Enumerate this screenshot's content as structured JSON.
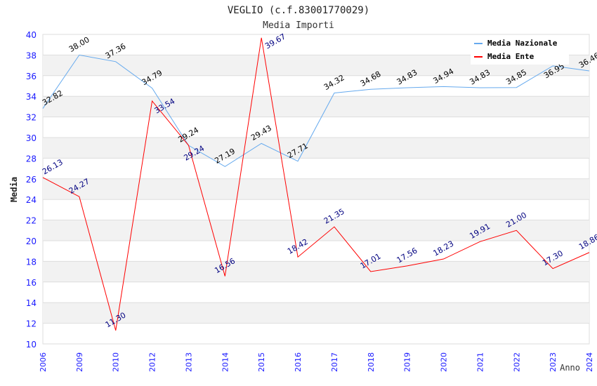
{
  "chart_data": {
    "type": "line",
    "title": "VEGLIO (c.f.83001770029)",
    "subtitle": "Media Importi",
    "xlabel": "Anno",
    "ylabel": "Media",
    "ylim": [
      10,
      40
    ],
    "yticks": [
      10,
      12,
      14,
      16,
      18,
      20,
      22,
      24,
      26,
      28,
      30,
      32,
      34,
      36,
      38,
      40
    ],
    "categories": [
      "2006",
      "2009",
      "2010",
      "2012",
      "2013",
      "2014",
      "2015",
      "2016",
      "2017",
      "2018",
      "2019",
      "2020",
      "2021",
      "2022",
      "2023",
      "2024"
    ],
    "grid": true,
    "legend_position": "top-right",
    "series": [
      {
        "name": "Media Nazionale",
        "color": "#66aaee",
        "label_color": "#000000",
        "values": [
          32.82,
          38.0,
          37.36,
          34.79,
          29.24,
          27.19,
          29.43,
          27.71,
          34.32,
          34.68,
          34.83,
          34.94,
          34.83,
          34.85,
          36.95,
          36.46
        ]
      },
      {
        "name": "Media Ente",
        "color": "#ff0000",
        "label_color": "#000080",
        "values": [
          26.13,
          24.27,
          11.3,
          33.54,
          29.24,
          16.56,
          39.67,
          18.42,
          21.35,
          17.01,
          17.56,
          18.23,
          19.91,
          21.0,
          17.3,
          18.86
        ]
      }
    ]
  }
}
